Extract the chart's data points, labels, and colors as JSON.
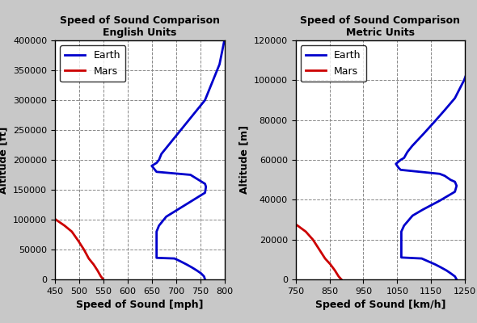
{
  "title_left": "Speed of Sound Comparison\nEnglish Units",
  "title_right": "Speed of Sound Comparison\nMetric Units",
  "xlabel_left": "Speed of Sound [mph]",
  "xlabel_right": "Speed of Sound [km/h]",
  "ylabel_left": "Altitude [ft]",
  "ylabel_right": "Altitude [m]",
  "earth_mph": [
    760,
    758,
    752,
    743,
    733,
    722,
    710,
    697,
    660,
    660,
    660,
    660,
    660,
    660,
    660,
    665,
    680,
    700,
    730,
    760,
    762,
    760,
    750,
    740,
    730,
    660,
    655,
    650,
    660,
    665,
    670,
    680,
    700,
    720,
    740,
    760,
    775,
    790,
    800
  ],
  "earth_alt_ft": [
    0,
    5000,
    10000,
    15000,
    20000,
    25000,
    30000,
    35000,
    36089,
    40000,
    50000,
    60000,
    65000,
    70000,
    80000,
    90000,
    105000,
    115000,
    130000,
    145000,
    155000,
    160000,
    165000,
    170000,
    175000,
    180000,
    185000,
    190000,
    195000,
    200000,
    210000,
    220000,
    240000,
    260000,
    280000,
    300000,
    330000,
    360000,
    400000
  ],
  "mars_mph": [
    550,
    545,
    538,
    530,
    520,
    510,
    498,
    485,
    470,
    452
  ],
  "mars_alt_ft": [
    0,
    5000,
    15000,
    25000,
    35000,
    50000,
    65000,
    80000,
    90000,
    100000
  ],
  "earth_kmh": [
    1225,
    1220,
    1208,
    1195,
    1179,
    1162,
    1142,
    1122,
    1062,
    1062,
    1062,
    1062,
    1062,
    1062,
    1062,
    1070,
    1095,
    1125,
    1175,
    1220,
    1225,
    1220,
    1207,
    1190,
    1175,
    1060,
    1054,
    1046,
    1060,
    1070,
    1080,
    1094,
    1127,
    1159,
    1190,
    1220,
    1247,
    1270,
    1290
  ],
  "earth_alt_m": [
    0,
    1500,
    3000,
    4500,
    6000,
    7500,
    9000,
    10500,
    11000,
    12000,
    15000,
    18000,
    20000,
    21000,
    24000,
    27000,
    32000,
    35000,
    39500,
    44000,
    47000,
    49000,
    50000,
    52000,
    53000,
    55000,
    56000,
    58000,
    60000,
    61000,
    64000,
    67000,
    73000,
    79000,
    85000,
    91000,
    100000,
    110000,
    122000
  ],
  "mars_kmh": [
    885,
    877,
    866,
    853,
    837,
    820,
    801,
    780,
    756,
    727
  ],
  "mars_alt_m": [
    0,
    1500,
    4500,
    7500,
    10500,
    15000,
    20000,
    24000,
    27000,
    30000
  ],
  "xlim_left": [
    450,
    800
  ],
  "xlim_right": [
    750,
    1250
  ],
  "ylim_left": [
    0,
    400000
  ],
  "ylim_right": [
    0,
    120000
  ],
  "xticks_left": [
    450,
    500,
    550,
    600,
    650,
    700,
    750,
    800
  ],
  "xticks_right": [
    750,
    850,
    950,
    1050,
    1150,
    1250
  ],
  "yticks_left": [
    0,
    50000,
    100000,
    150000,
    200000,
    250000,
    300000,
    350000,
    400000
  ],
  "yticks_right": [
    0,
    20000,
    40000,
    60000,
    80000,
    100000,
    120000
  ],
  "earth_color": "#0000CC",
  "mars_color": "#CC0000",
  "grid_color": "#888888",
  "bg_color": "#FFFFFF",
  "fig_bg": "#C8C8C8",
  "border_color": "#000000",
  "line_width": 2.0,
  "title_fontsize": 9,
  "label_fontsize": 9,
  "tick_fontsize": 8,
  "legend_fontsize": 9
}
